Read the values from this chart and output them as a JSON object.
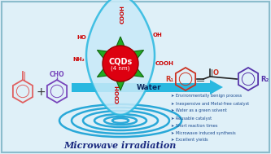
{
  "background_color": "#dff0f8",
  "border_color": "#8bbccc",
  "bullet_points": [
    "Environmentally benign process",
    "Inexpensive and Metal-free catalyst",
    "Water as a green solvent",
    "Reusable catalyst",
    "Short reaction times",
    "Microwave induced synthesis",
    "Excellent yields"
  ],
  "bullet_color": "#1a4a90",
  "water_arrow_color": "#29b8e0",
  "water_text": "Water",
  "microwave_text": "Microwave irradiation",
  "microwave_color": "#1a2a80",
  "cqd_label": "CQDs",
  "cqd_sublabel": "(4 nm)",
  "cqd_center_color": "#dd0010",
  "cqd_star_color": "#22aa22",
  "drop_fill": "#c8eaf8",
  "drop_edge": "#29b8e0",
  "func_color": "#cc0000",
  "reactant1_color": "#e06060",
  "reactant2_color": "#7744bb",
  "product_color1": "#cc3322",
  "product_color2": "#5533aa",
  "ripple_color": "#29a8d8"
}
